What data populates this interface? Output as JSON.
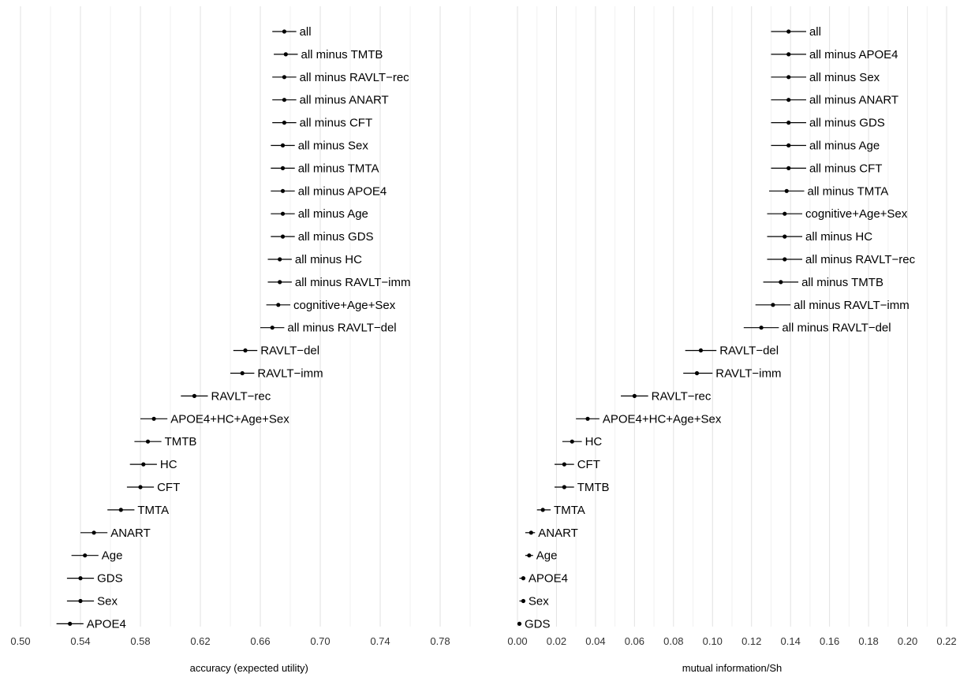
{
  "chart_data": [
    {
      "type": "scatter",
      "xlabel": "accuracy (expected utility)",
      "xlim": [
        0.495,
        0.81
      ],
      "xticks": [
        "0.50",
        "0.54",
        "0.58",
        "0.62",
        "0.66",
        "0.70",
        "0.74",
        "0.78"
      ],
      "points": [
        {
          "label": "all",
          "value": 0.676,
          "lo": 0.668,
          "hi": 0.684
        },
        {
          "label": "all minus TMTB",
          "value": 0.677,
          "lo": 0.669,
          "hi": 0.685
        },
        {
          "label": "all minus RAVLT−rec",
          "value": 0.676,
          "lo": 0.668,
          "hi": 0.684
        },
        {
          "label": "all minus ANART",
          "value": 0.676,
          "lo": 0.668,
          "hi": 0.684
        },
        {
          "label": "all minus CFT",
          "value": 0.676,
          "lo": 0.668,
          "hi": 0.684
        },
        {
          "label": "all minus Sex",
          "value": 0.675,
          "lo": 0.667,
          "hi": 0.683
        },
        {
          "label": "all minus TMTA",
          "value": 0.675,
          "lo": 0.667,
          "hi": 0.683
        },
        {
          "label": "all minus APOE4",
          "value": 0.675,
          "lo": 0.667,
          "hi": 0.683
        },
        {
          "label": "all minus Age",
          "value": 0.675,
          "lo": 0.667,
          "hi": 0.683
        },
        {
          "label": "all minus GDS",
          "value": 0.675,
          "lo": 0.667,
          "hi": 0.683
        },
        {
          "label": "all minus HC",
          "value": 0.673,
          "lo": 0.665,
          "hi": 0.681
        },
        {
          "label": "all minus RAVLT−imm",
          "value": 0.673,
          "lo": 0.665,
          "hi": 0.681
        },
        {
          "label": "cognitive+Age+Sex",
          "value": 0.672,
          "lo": 0.664,
          "hi": 0.68
        },
        {
          "label": "all minus RAVLT−del",
          "value": 0.668,
          "lo": 0.66,
          "hi": 0.676
        },
        {
          "label": "RAVLT−del",
          "value": 0.65,
          "lo": 0.642,
          "hi": 0.658
        },
        {
          "label": "RAVLT−imm",
          "value": 0.648,
          "lo": 0.64,
          "hi": 0.656
        },
        {
          "label": "RAVLT−rec",
          "value": 0.616,
          "lo": 0.607,
          "hi": 0.625
        },
        {
          "label": "APOE4+HC+Age+Sex",
          "value": 0.589,
          "lo": 0.58,
          "hi": 0.598
        },
        {
          "label": "TMTB",
          "value": 0.585,
          "lo": 0.576,
          "hi": 0.594
        },
        {
          "label": "HC",
          "value": 0.582,
          "lo": 0.573,
          "hi": 0.591
        },
        {
          "label": "CFT",
          "value": 0.58,
          "lo": 0.571,
          "hi": 0.589
        },
        {
          "label": "TMTA",
          "value": 0.567,
          "lo": 0.558,
          "hi": 0.576
        },
        {
          "label": "ANART",
          "value": 0.549,
          "lo": 0.54,
          "hi": 0.558
        },
        {
          "label": "Age",
          "value": 0.543,
          "lo": 0.534,
          "hi": 0.552
        },
        {
          "label": "GDS",
          "value": 0.54,
          "lo": 0.531,
          "hi": 0.549
        },
        {
          "label": "Sex",
          "value": 0.54,
          "lo": 0.531,
          "hi": 0.549
        },
        {
          "label": "APOE4",
          "value": 0.533,
          "lo": 0.524,
          "hi": 0.542
        }
      ]
    },
    {
      "type": "scatter",
      "xlabel": "mutual information/Sh",
      "xlim": [
        -0.002,
        0.222
      ],
      "xticks": [
        "0.00",
        "0.02",
        "0.04",
        "0.06",
        "0.08",
        "0.10",
        "0.12",
        "0.14",
        "0.16",
        "0.18",
        "0.20",
        "0.22"
      ],
      "points": [
        {
          "label": "all",
          "value": 0.139,
          "lo": 0.13,
          "hi": 0.148
        },
        {
          "label": "all minus APOE4",
          "value": 0.139,
          "lo": 0.13,
          "hi": 0.148
        },
        {
          "label": "all minus Sex",
          "value": 0.139,
          "lo": 0.13,
          "hi": 0.148
        },
        {
          "label": "all minus ANART",
          "value": 0.139,
          "lo": 0.13,
          "hi": 0.148
        },
        {
          "label": "all minus GDS",
          "value": 0.139,
          "lo": 0.13,
          "hi": 0.148
        },
        {
          "label": "all minus Age",
          "value": 0.139,
          "lo": 0.13,
          "hi": 0.148
        },
        {
          "label": "all minus CFT",
          "value": 0.139,
          "lo": 0.13,
          "hi": 0.148
        },
        {
          "label": "all minus TMTA",
          "value": 0.138,
          "lo": 0.129,
          "hi": 0.147
        },
        {
          "label": "cognitive+Age+Sex",
          "value": 0.137,
          "lo": 0.128,
          "hi": 0.146
        },
        {
          "label": "all minus HC",
          "value": 0.137,
          "lo": 0.128,
          "hi": 0.146
        },
        {
          "label": "all minus RAVLT−rec",
          "value": 0.137,
          "lo": 0.128,
          "hi": 0.146
        },
        {
          "label": "all minus TMTB",
          "value": 0.135,
          "lo": 0.126,
          "hi": 0.144
        },
        {
          "label": "all minus RAVLT−imm",
          "value": 0.131,
          "lo": 0.122,
          "hi": 0.14
        },
        {
          "label": "all minus RAVLT−del",
          "value": 0.125,
          "lo": 0.116,
          "hi": 0.134
        },
        {
          "label": "RAVLT−del",
          "value": 0.094,
          "lo": 0.086,
          "hi": 0.102
        },
        {
          "label": "RAVLT−imm",
          "value": 0.092,
          "lo": 0.085,
          "hi": 0.1
        },
        {
          "label": "RAVLT−rec",
          "value": 0.06,
          "lo": 0.053,
          "hi": 0.067
        },
        {
          "label": "APOE4+HC+Age+Sex",
          "value": 0.036,
          "lo": 0.03,
          "hi": 0.042
        },
        {
          "label": "HC",
          "value": 0.028,
          "lo": 0.023,
          "hi": 0.033
        },
        {
          "label": "CFT",
          "value": 0.024,
          "lo": 0.019,
          "hi": 0.029
        },
        {
          "label": "TMTB",
          "value": 0.024,
          "lo": 0.019,
          "hi": 0.029
        },
        {
          "label": "TMTA",
          "value": 0.013,
          "lo": 0.01,
          "hi": 0.017
        },
        {
          "label": "ANART",
          "value": 0.007,
          "lo": 0.004,
          "hi": 0.009
        },
        {
          "label": "Age",
          "value": 0.006,
          "lo": 0.004,
          "hi": 0.008
        },
        {
          "label": "APOE4",
          "value": 0.003,
          "lo": 0.001,
          "hi": 0.004
        },
        {
          "label": "Sex",
          "value": 0.003,
          "lo": 0.001,
          "hi": 0.004
        },
        {
          "label": "GDS",
          "value": 0.001,
          "lo": 0.0,
          "hi": 0.002
        }
      ]
    }
  ]
}
